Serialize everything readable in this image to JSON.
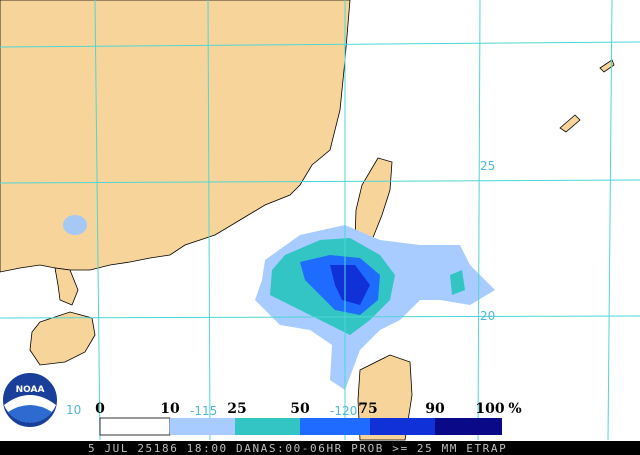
{
  "map": {
    "latitude_labels": [
      "25",
      "20"
    ],
    "longitude_labels": [
      "-115",
      "-120"
    ],
    "edge_label": "10"
  },
  "logo": "NOAA",
  "legend": {
    "labels": [
      "0",
      "10",
      "25",
      "50",
      "75",
      "90",
      "100"
    ],
    "unit": "%"
  },
  "footer": "5 JUL 25186 18:00 DANAS:00-06HR PROB >= 25 MM ETRAP"
}
